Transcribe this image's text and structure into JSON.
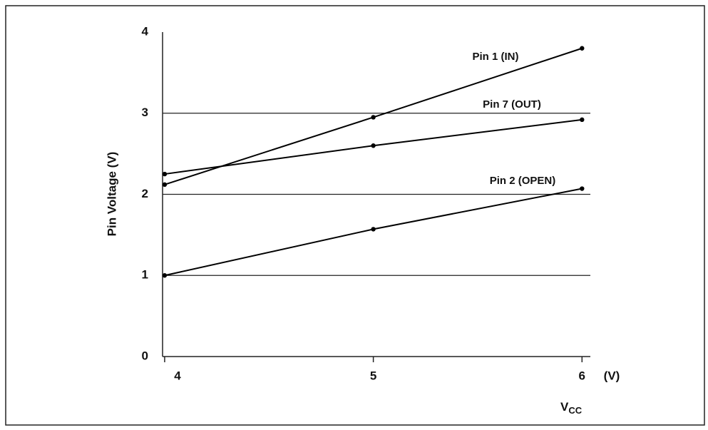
{
  "chart_data": {
    "type": "line",
    "y_label": "Pin Voltage (V)",
    "x_label": {
      "base": "V",
      "subscript": "CC"
    },
    "x_unit": "(V)",
    "x": [
      4,
      5,
      6
    ],
    "xlim": [
      3.99,
      6.04
    ],
    "xticks": [
      4,
      5,
      6
    ],
    "ylim": [
      0,
      4
    ],
    "yticks": [
      0,
      1,
      2,
      3,
      4
    ],
    "grid": true,
    "series": [
      {
        "name": "Pin 1 (IN)",
        "color": "#000000",
        "values": [
          2.12,
          2.95,
          3.8
        ]
      },
      {
        "name": "Pin 7 (OUT)",
        "color": "#000000",
        "values": [
          2.25,
          2.6,
          2.92
        ]
      },
      {
        "name": "Pin 2 (OPEN)",
        "color": "#000000",
        "values": [
          1.0,
          1.57,
          2.07
        ]
      }
    ]
  }
}
